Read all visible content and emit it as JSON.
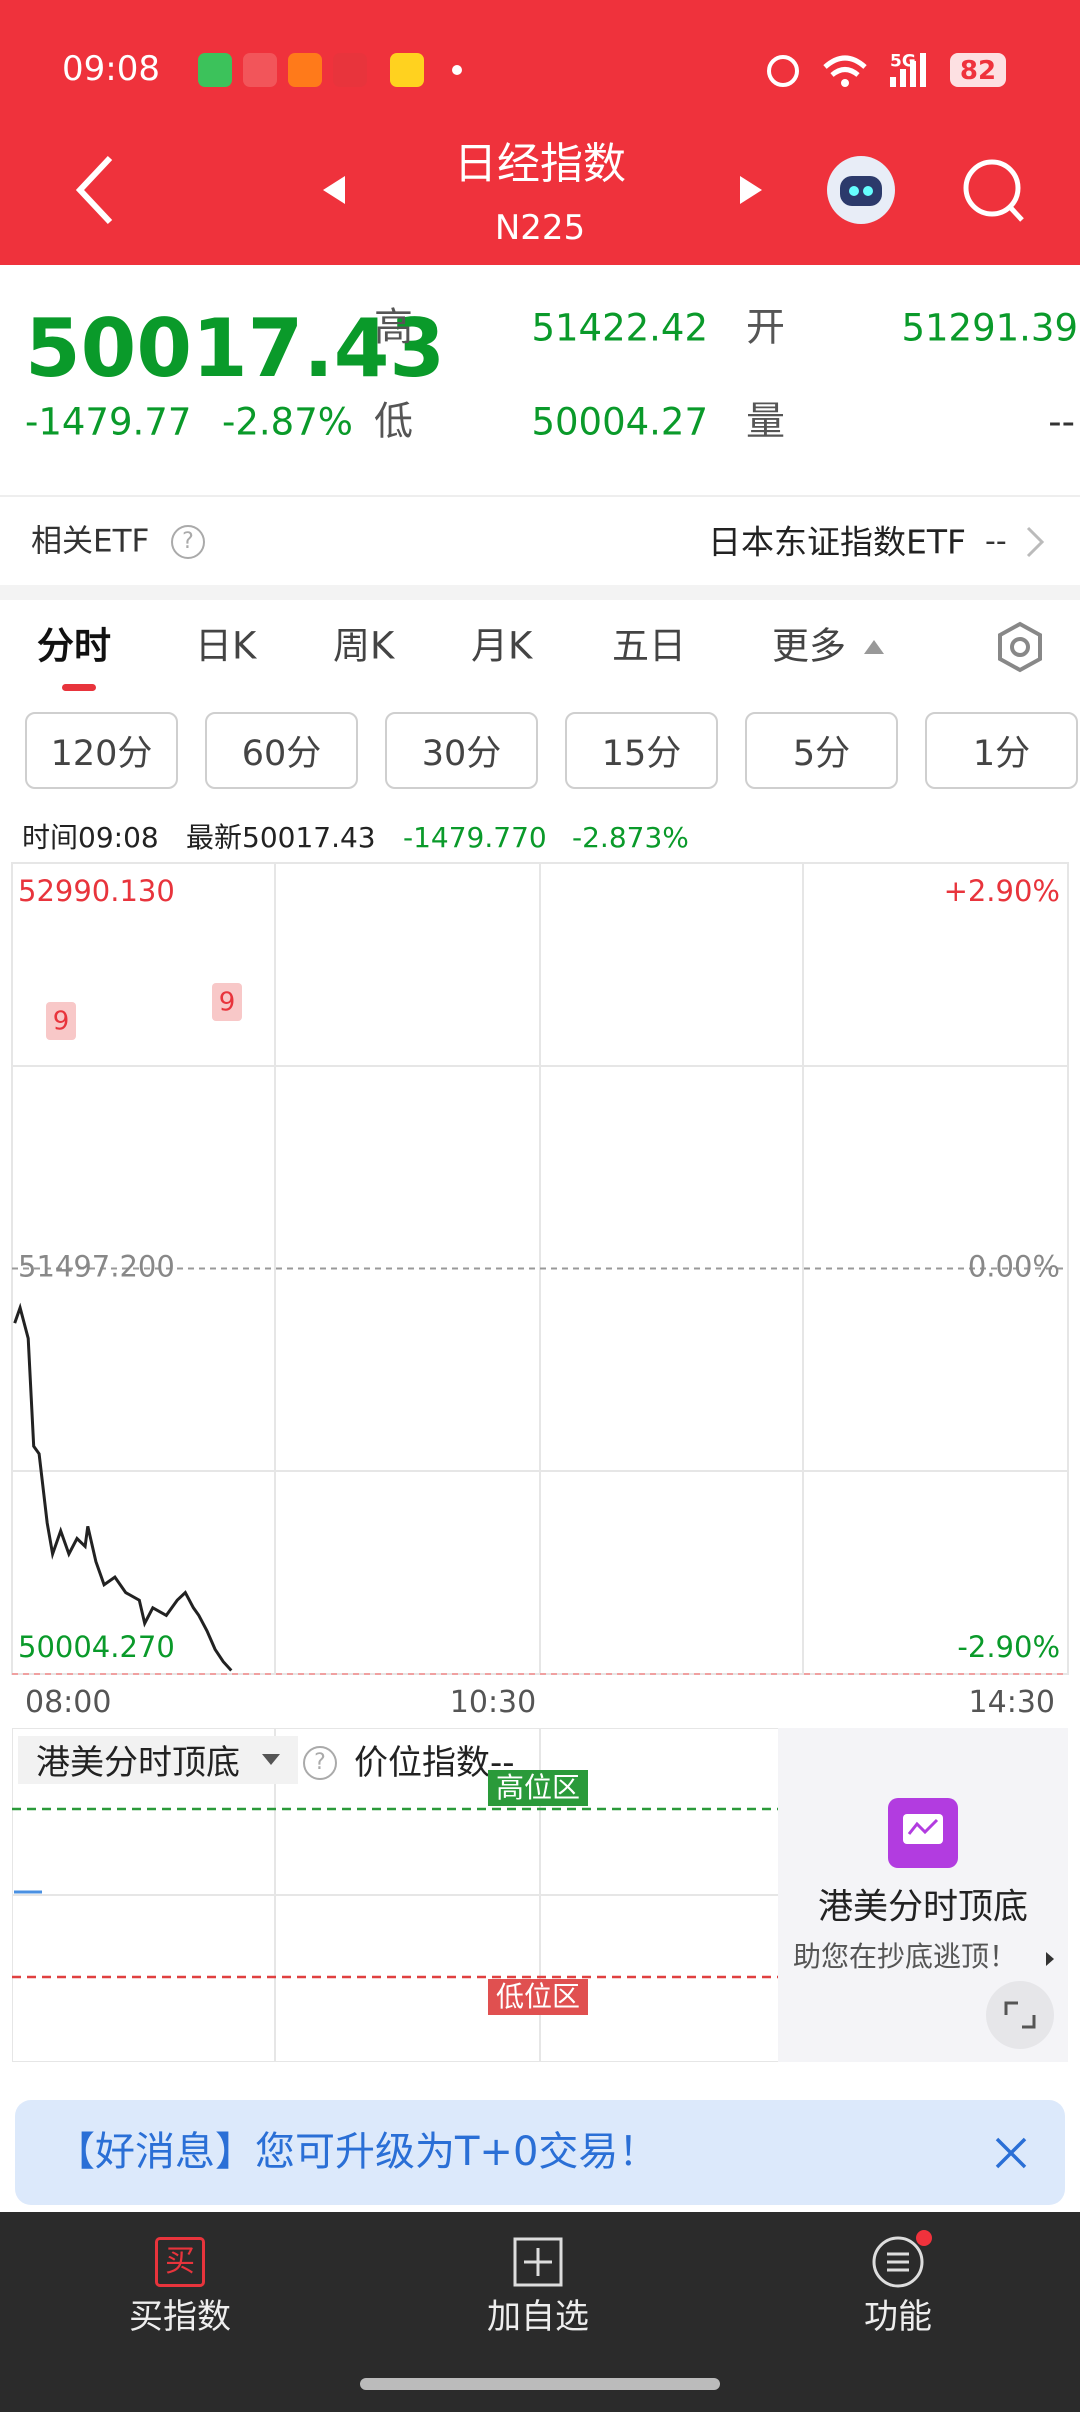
{
  "status_bar": {
    "time": "09:08",
    "network": "5G",
    "battery": "82"
  },
  "header": {
    "title": "日经指数",
    "code": "N225"
  },
  "quote": {
    "price": "50017.43",
    "change": "-1479.77",
    "change_pct": "-2.87%",
    "high_label": "高",
    "high": "51422.42",
    "open_label": "开",
    "open": "51291.39",
    "low_label": "低",
    "low": "50004.27",
    "volume_label": "量",
    "volume": "--"
  },
  "etf": {
    "label": "相关ETF",
    "help": "?",
    "name": "日本东证指数ETF",
    "value": "--"
  },
  "tabs": [
    "分时",
    "日K",
    "周K",
    "月K",
    "五日",
    "更多"
  ],
  "periods": [
    "120分",
    "60分",
    "30分",
    "15分",
    "5分",
    "1分"
  ],
  "info": {
    "time": "时间09:08",
    "latest": "最新50017.43",
    "change": "-1479.770",
    "change_pct": "-2.873%"
  },
  "chart_data": {
    "type": "line",
    "color": "#222222",
    "x": [
      1,
      3,
      6,
      8,
      10,
      13,
      15,
      18,
      21,
      24,
      27,
      28,
      31,
      34,
      38,
      42,
      47,
      49,
      52,
      57,
      61,
      64,
      67,
      69,
      72,
      75,
      78,
      81
    ],
    "values": [
      51296,
      51353,
      51240,
      50843,
      50815,
      50560,
      50446,
      50531,
      50446,
      50503,
      50474,
      50548,
      50418,
      50333,
      50361,
      50304,
      50276,
      50191,
      50248,
      50220,
      50276,
      50304,
      50248,
      50220,
      50163,
      50095,
      50050,
      50017
    ],
    "xlim": [
      0,
      390
    ],
    "ylim": [
      50004.27,
      52990.13
    ],
    "yticks": [
      {
        "value": 52990.13,
        "label": "52990.130"
      },
      {
        "value": 51497.2,
        "label": "51497.200"
      },
      {
        "value": 50004.27,
        "label": "50004.270"
      }
    ],
    "y2lim": [
      -2.9,
      2.9
    ],
    "y2ticks": [
      {
        "value": 2.9,
        "label": "+2.90%"
      },
      {
        "value": 0,
        "label": "0.00%"
      },
      {
        "value": -2.9,
        "label": "-2.90%"
      }
    ],
    "time_labels": [
      "08:00",
      "10:30",
      "14:30"
    ],
    "signal_labels": [
      "9",
      "9"
    ]
  },
  "indicator": {
    "name": "港美分时顶底",
    "help": "?",
    "title": "价位指数--",
    "high_zone": "高位区",
    "low_zone": "低位区"
  },
  "promo": {
    "title": "港美分时顶底",
    "subtitle": "助您在抄底逃顶！"
  },
  "banner": {
    "text": "【好消息】您可升级为T+0交易！"
  },
  "bottom_nav": [
    {
      "icon": "买",
      "label": "买指数"
    },
    {
      "label": "加自选"
    },
    {
      "label": "功能"
    }
  ]
}
